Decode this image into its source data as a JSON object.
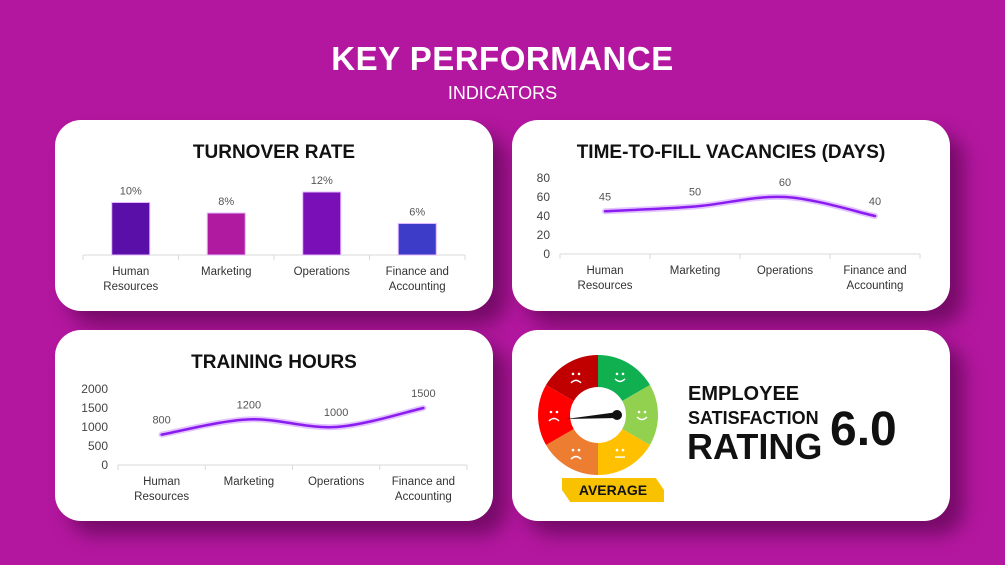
{
  "header": {
    "title": "KEY PERFORMANCE",
    "subtitle": "INDICATORS"
  },
  "chart_data": [
    {
      "id": "turnover",
      "type": "bar",
      "title": "TURNOVER RATE",
      "categories": [
        [
          "Human",
          "Resources"
        ],
        [
          "Marketing"
        ],
        [
          "Operations"
        ],
        [
          "Finance and",
          "Accounting"
        ]
      ],
      "values": [
        10,
        8,
        12,
        6
      ],
      "value_labels": [
        "10%",
        "8%",
        "12%",
        "6%"
      ],
      "colors": [
        "#5a0fa8",
        "#b01aa0",
        "#7a0fb8",
        "#3c3cc8"
      ],
      "ylim": [
        0,
        12
      ]
    },
    {
      "id": "ttf",
      "type": "line",
      "title": "TIME-TO-FILL VACANCIES (DAYS)",
      "categories": [
        [
          "Human",
          "Resources"
        ],
        [
          "Marketing"
        ],
        [
          "Operations"
        ],
        [
          "Finance and",
          "Accounting"
        ]
      ],
      "values": [
        45,
        50,
        60,
        40
      ],
      "ylim": [
        0,
        80
      ],
      "yticks": [
        0,
        20,
        40,
        60,
        80
      ],
      "color": "#8a1cf0"
    },
    {
      "id": "training",
      "type": "line",
      "title": "TRAINING HOURS",
      "categories": [
        [
          "Human",
          "Resources"
        ],
        [
          "Marketing"
        ],
        [
          "Operations"
        ],
        [
          "Finance and",
          "Accounting"
        ]
      ],
      "values": [
        800,
        1200,
        1000,
        1500
      ],
      "ylim": [
        0,
        2000
      ],
      "yticks": [
        0,
        500,
        1000,
        1500,
        2000
      ],
      "color": "#8a1cf0"
    }
  ],
  "satisfaction": {
    "line1": "EMPLOYEE",
    "line2": "SATISFACTION",
    "line3": "RATING",
    "value": "6.0",
    "level": "AVERAGE",
    "gauge_colors": [
      "#10b050",
      "#92d050",
      "#ffc000",
      "#ed7d31",
      "#ff0000",
      "#c00000"
    ]
  }
}
